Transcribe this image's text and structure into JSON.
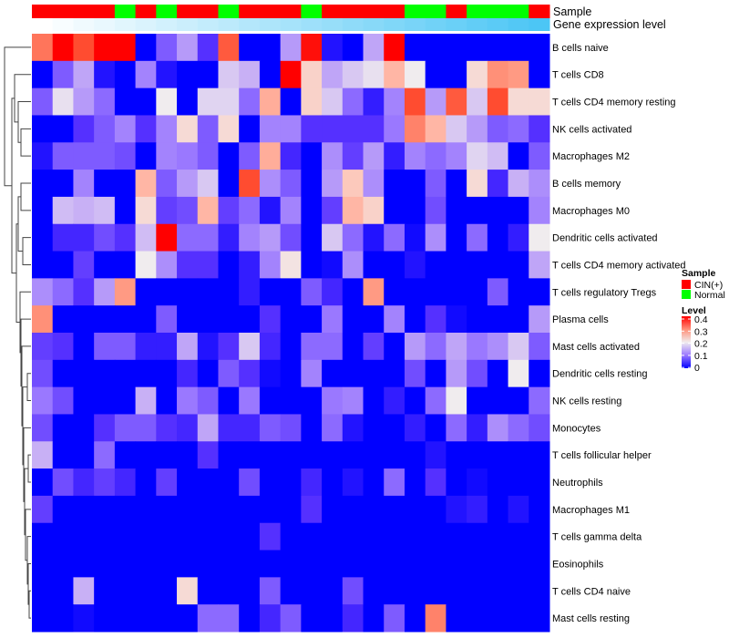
{
  "chart_data": {
    "type": "heatmap",
    "title": "",
    "annotations": {
      "sample_label": "Sample",
      "gene_expression_label": "Gene expression level",
      "samples": [
        "CIN(+)",
        "CIN(+)",
        "CIN(+)",
        "CIN(+)",
        "Normal",
        "CIN(+)",
        "Normal",
        "CIN(+)",
        "CIN(+)",
        "Normal",
        "CIN(+)",
        "CIN(+)",
        "CIN(+)",
        "Normal",
        "CIN(+)",
        "CIN(+)",
        "CIN(+)",
        "CIN(+)",
        "Normal",
        "Normal",
        "CIN(+)",
        "Normal",
        "Normal",
        "Normal",
        "CIN(+)"
      ]
    },
    "rows": [
      "B cells naive",
      "T cells CD8",
      "T cells CD4 memory resting",
      "NK cells activated",
      "Macrophages M2",
      "B cells memory",
      "Macrophages M0",
      "Dendritic cells activated",
      "T cells CD4 memory activated",
      "T cells regulatory  Tregs",
      "Plasma cells",
      "Mast cells activated",
      "Dendritic cells resting",
      "NK cells resting",
      "Monocytes",
      "T cells follicular helper",
      "Neutrophils",
      "Macrophages M1",
      "T cells gamma delta",
      "Eosinophils",
      "T cells CD4 naive",
      "Mast cells resting"
    ],
    "values": [
      [
        0.32,
        0.4,
        0.35,
        0.4,
        0.4,
        0,
        0.08,
        0.13,
        0.05,
        0.34,
        0,
        0,
        0.13,
        0.39,
        0.02,
        0,
        0.14,
        0.4,
        0,
        0,
        0,
        0,
        0,
        0,
        0
      ],
      [
        0,
        0.08,
        0.14,
        0.02,
        0,
        0.11,
        0.02,
        0,
        0,
        0.17,
        0.15,
        0,
        0.4,
        0.23,
        0.14,
        0.17,
        0.19,
        0.26,
        0.2,
        0,
        0,
        0.22,
        0.3,
        0.29,
        0
      ],
      [
        0.08,
        0.19,
        0.13,
        0.09,
        0,
        0,
        0.2,
        0,
        0.18,
        0.18,
        0.09,
        0.27,
        0,
        0.23,
        0.17,
        0.09,
        0.03,
        0.11,
        0.35,
        0.13,
        0.34,
        0.17,
        0.35,
        0.22,
        0.22
      ],
      [
        0,
        0,
        0.05,
        0.08,
        0.11,
        0.05,
        0.11,
        0.22,
        0.08,
        0.22,
        0,
        0.11,
        0.11,
        0.05,
        0.05,
        0.05,
        0.05,
        0.1,
        0.31,
        0.26,
        0.17,
        0.13,
        0.08,
        0.09,
        0.05
      ],
      [
        0.02,
        0.08,
        0.08,
        0.08,
        0.07,
        0,
        0.11,
        0.1,
        0.08,
        0,
        0.08,
        0.27,
        0.04,
        0,
        0.12,
        0.06,
        0.13,
        0.03,
        0.11,
        0.09,
        0.11,
        0.18,
        0.16,
        0,
        0.08
      ],
      [
        0,
        0,
        0.11,
        0,
        0,
        0.26,
        0.08,
        0.13,
        0.17,
        0,
        0.35,
        0.12,
        0.08,
        0,
        0.13,
        0.24,
        0.12,
        0,
        0,
        0.08,
        0,
        0.22,
        0.04,
        0.15,
        0.12
      ],
      [
        0,
        0.16,
        0.15,
        0.16,
        0,
        0.22,
        0.06,
        0.07,
        0.26,
        0.06,
        0.09,
        0.02,
        0.11,
        0,
        0.06,
        0.26,
        0.23,
        0,
        0,
        0.07,
        0,
        0,
        0,
        0,
        0.11
      ],
      [
        0,
        0.04,
        0.04,
        0.07,
        0.05,
        0.16,
        0.4,
        0.09,
        0.09,
        0.03,
        0.11,
        0.13,
        0.07,
        0,
        0.17,
        0.09,
        0.02,
        0.09,
        0.01,
        0.12,
        0,
        0.09,
        0,
        0.03,
        0.2
      ],
      [
        0,
        0,
        0.06,
        0,
        0,
        0.2,
        0.12,
        0.05,
        0.05,
        0,
        0.03,
        0.11,
        0.21,
        0,
        0.01,
        0.12,
        0,
        0,
        0.02,
        0,
        0,
        0,
        0,
        0,
        0.14
      ],
      [
        0.12,
        0.09,
        0.05,
        0.13,
        0.29,
        0,
        0,
        0,
        0,
        0,
        0.03,
        0,
        0,
        0.08,
        0.04,
        0,
        0.29,
        0,
        0,
        0,
        0,
        0,
        0.08,
        0,
        0
      ],
      [
        0.3,
        0,
        0,
        0,
        0,
        0,
        0.08,
        0,
        0,
        0,
        0,
        0.05,
        0,
        0,
        0.1,
        0,
        0,
        0.11,
        0,
        0.05,
        0.01,
        0,
        0,
        0,
        0.13
      ],
      [
        0.06,
        0.05,
        0,
        0.08,
        0.08,
        0.03,
        0.03,
        0.14,
        0.02,
        0.05,
        0.17,
        0.04,
        0,
        0.09,
        0.09,
        0,
        0.06,
        0,
        0.13,
        0.09,
        0.14,
        0.1,
        0.12,
        0.17,
        0.08
      ],
      [
        0.07,
        0,
        0,
        0,
        0,
        0,
        0,
        0.04,
        0,
        0.08,
        0.05,
        0.01,
        0,
        0.11,
        0,
        0,
        0,
        0,
        0.07,
        0,
        0.13,
        0.07,
        0,
        0.2,
        0
      ],
      [
        0.1,
        0.07,
        0,
        0,
        0,
        0.15,
        0,
        0.1,
        0.08,
        0,
        0.1,
        0,
        0,
        0,
        0.1,
        0.11,
        0,
        0.03,
        0,
        0.09,
        0.2,
        0,
        0,
        0,
        0.09
      ],
      [
        0.07,
        0,
        0,
        0.05,
        0.08,
        0.08,
        0.05,
        0.04,
        0.14,
        0.04,
        0.04,
        0.08,
        0.07,
        0,
        0.09,
        0.02,
        0,
        0,
        0.03,
        0,
        0.09,
        0.03,
        0.12,
        0.09,
        0.07
      ],
      [
        0.15,
        0,
        0,
        0.09,
        0,
        0,
        0,
        0,
        0.05,
        0,
        0,
        0,
        0,
        0,
        0,
        0,
        0,
        0,
        0,
        0.02,
        0,
        0,
        0,
        0,
        0
      ],
      [
        0,
        0.07,
        0.04,
        0.06,
        0.04,
        0,
        0.06,
        0,
        0,
        0,
        0.07,
        0,
        0,
        0.04,
        0,
        0.02,
        0,
        0.09,
        0,
        0.05,
        0,
        0.01,
        0,
        0,
        0
      ],
      [
        0.06,
        0,
        0,
        0,
        0,
        0,
        0,
        0,
        0,
        0,
        0,
        0,
        0,
        0.05,
        0,
        0,
        0,
        0,
        0,
        0,
        0.02,
        0.03,
        0,
        0.02,
        0
      ],
      [
        0,
        0,
        0,
        0,
        0,
        0,
        0,
        0,
        0,
        0,
        0,
        0.05,
        0,
        0,
        0,
        0,
        0,
        0,
        0,
        0,
        0,
        0,
        0,
        0,
        0
      ],
      [
        0,
        0,
        0,
        0,
        0,
        0,
        0,
        0,
        0,
        0,
        0,
        0,
        0,
        0,
        0,
        0,
        0,
        0,
        0,
        0,
        0,
        0,
        0,
        0,
        0
      ],
      [
        0,
        0,
        0.15,
        0,
        0,
        0,
        0,
        0.22,
        0,
        0,
        0,
        0.08,
        0,
        0,
        0,
        0.07,
        0,
        0,
        0,
        0,
        0,
        0,
        0,
        0,
        0
      ],
      [
        0,
        0,
        0.01,
        0,
        0,
        0,
        0,
        0,
        0.09,
        0.09,
        0,
        0.04,
        0.08,
        0,
        0,
        0.04,
        0,
        0.08,
        0,
        0.31,
        0,
        0,
        0,
        0,
        0
      ]
    ],
    "color_scale": {
      "min": 0,
      "mid": 0.2,
      "max": 0.4,
      "low_color": "#0000ff",
      "mid_color": "#f0ecee",
      "high_color": "#ff0000"
    },
    "legend": {
      "placement": "right",
      "sample_title": "Sample",
      "sample_entries": [
        {
          "label": "CIN(+)",
          "color": "#ff0000"
        },
        {
          "label": "Normal",
          "color": "#00ff00"
        }
      ],
      "level_title": "Level",
      "level_ticks": [
        "0.4",
        "0.3",
        "0.2",
        "0.1",
        "0"
      ]
    },
    "annotation_colors": {
      "CIN(+)": "#ff0000",
      "Normal": "#00ff00",
      "gene_low": "#ffffff",
      "gene_high": "#4cc6f5"
    }
  }
}
